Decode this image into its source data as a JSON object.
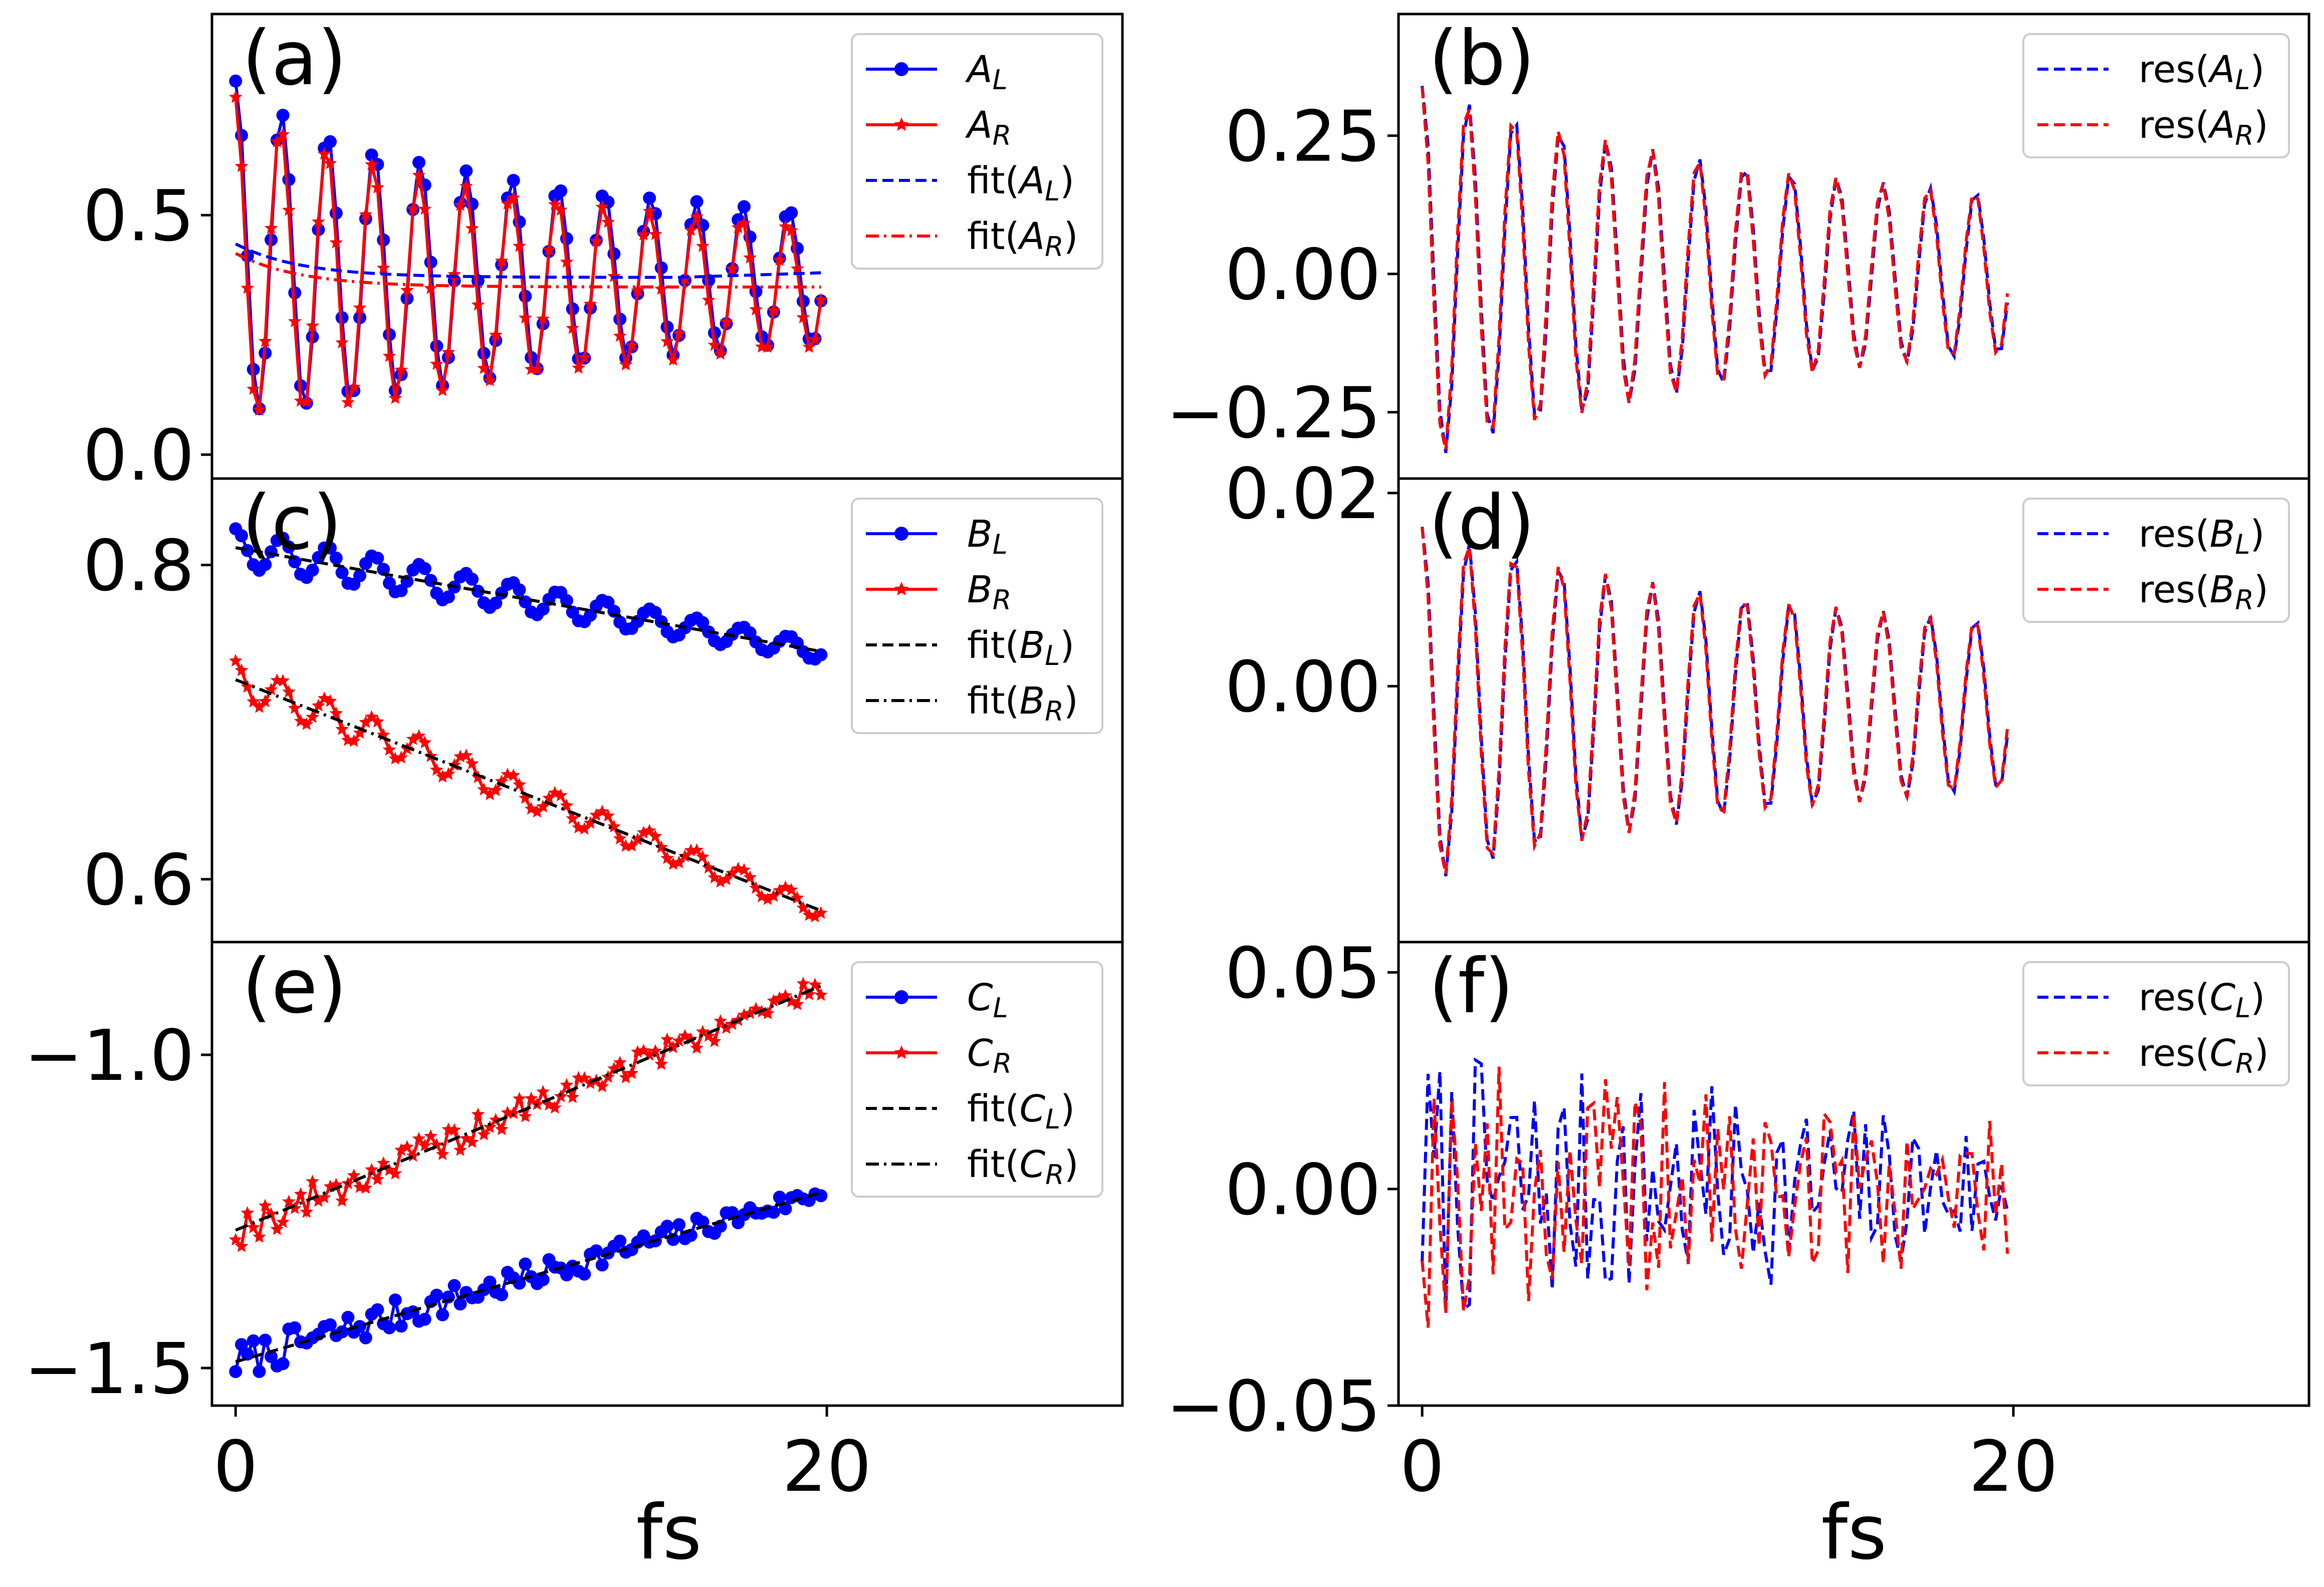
{
  "chart_data": {
    "type": "line",
    "xlabel": "fs",
    "x_ticks": [
      0,
      20
    ],
    "xlim": [
      -0.8,
      30
    ],
    "time_step": 0.2,
    "time_end": 19.8,
    "panels": [
      {
        "id": "a",
        "label": "(a)",
        "ylim": [
          -0.05,
          0.92
        ],
        "yticks": [
          {
            "v": 0.0,
            "t": "0.0"
          },
          {
            "v": 0.5,
            "t": "0.5"
          }
        ],
        "legend": [
          {
            "text": "A_L",
            "sub": "L",
            "base": "A",
            "italic": true,
            "color": "#0000ff",
            "style": "marker-circle"
          },
          {
            "text": "A_R",
            "sub": "R",
            "base": "A",
            "italic": true,
            "color": "#ff0000",
            "style": "marker-star"
          },
          {
            "text": "fit(A_L)",
            "sub": "L",
            "base": "A",
            "wrap": "fit",
            "color": "#0000ff",
            "style": "dashed"
          },
          {
            "text": "fit(A_R)",
            "sub": "R",
            "base": "A",
            "wrap": "fit",
            "color": "#ff0000",
            "style": "dashdot"
          }
        ],
        "series": [
          {
            "name": "A_L",
            "kind": "osc",
            "color": "#0000ff",
            "marker": "circle",
            "base_start": 0.44,
            "base_end": 0.37,
            "base_tau": 2.2,
            "amp0": 0.34,
            "amp1": 0.09,
            "amp_tau": 12,
            "period": 1.56,
            "phase": 0.0
          },
          {
            "name": "A_R",
            "kind": "osc",
            "color": "#ff0000",
            "marker": "star",
            "base_start": 0.42,
            "base_end": 0.35,
            "base_tau": 2.2,
            "amp0": 0.33,
            "amp1": 0.08,
            "amp_tau": 12,
            "period": 1.56,
            "phase": 0.15
          },
          {
            "name": "fit(A_L)",
            "kind": "fit",
            "color": "#0000ff",
            "dash": "dashed",
            "base_start": 0.44,
            "base_end": 0.37,
            "base_tau": 2.2,
            "tail_rise": 0.01
          },
          {
            "name": "fit(A_R)",
            "kind": "fit",
            "color": "#ff0000",
            "dash": "dashdot",
            "base_start": 0.42,
            "base_end": 0.35,
            "base_tau": 2.2,
            "tail_rise": 0.0
          }
        ]
      },
      {
        "id": "b",
        "label": "(b)",
        "ylim": [
          -0.37,
          0.47
        ],
        "yticks": [
          {
            "v": -0.25,
            "t": "−0.25"
          },
          {
            "v": 0.0,
            "t": "0.00"
          },
          {
            "v": 0.25,
            "t": "0.25"
          }
        ],
        "legend": [
          {
            "text": "res(A_L)",
            "sub": "L",
            "base": "A",
            "wrap": "res",
            "color": "#0000ff",
            "style": "dashed"
          },
          {
            "text": "res(A_R)",
            "sub": "R",
            "base": "A",
            "wrap": "res",
            "color": "#ff0000",
            "style": "dashed"
          }
        ],
        "series": [
          {
            "name": "res(A_L)",
            "kind": "res",
            "color": "#0000ff",
            "dash": "dashed",
            "amp0": 0.34,
            "amp1": 0.1,
            "amp_tau": 12,
            "period": 1.56,
            "phase": 0.0
          },
          {
            "name": "res(A_R)",
            "kind": "res",
            "color": "#ff0000",
            "dash": "dashed",
            "amp0": 0.34,
            "amp1": 0.1,
            "amp_tau": 12,
            "period": 1.56,
            "phase": 0.12
          }
        ]
      },
      {
        "id": "c",
        "label": "(c)",
        "ylim": [
          0.56,
          0.855
        ],
        "yticks": [
          {
            "v": 0.6,
            "t": "0.6"
          },
          {
            "v": 0.8,
            "t": "0.8"
          }
        ],
        "legend": [
          {
            "text": "B_L",
            "sub": "L",
            "base": "B",
            "italic": true,
            "color": "#0000ff",
            "style": "marker-circle"
          },
          {
            "text": "B_R",
            "sub": "R",
            "base": "B",
            "italic": true,
            "color": "#ff0000",
            "style": "marker-star"
          },
          {
            "text": "fit(B_L)",
            "sub": "L",
            "base": "B",
            "wrap": "fit",
            "color": "#000000",
            "style": "dashed"
          },
          {
            "text": "fit(B_R)",
            "sub": "R",
            "base": "B",
            "wrap": "fit",
            "color": "#000000",
            "style": "dashdot"
          }
        ],
        "series": [
          {
            "name": "B_L",
            "kind": "linosc",
            "color": "#0000ff",
            "marker": "circle",
            "y0": 0.811,
            "y1": 0.745,
            "amp0": 0.012,
            "amp1": 0.006,
            "period": 1.56,
            "phase": 0.0
          },
          {
            "name": "B_R",
            "kind": "linosc",
            "color": "#ff0000",
            "marker": "star",
            "y0": 0.727,
            "y1": 0.58,
            "amp0": 0.012,
            "amp1": 0.006,
            "period": 1.56,
            "phase": 0.1
          },
          {
            "name": "fit(B_L)",
            "kind": "line",
            "color": "#000000",
            "dash": "dashed",
            "y0": 0.811,
            "y1": 0.745
          },
          {
            "name": "fit(B_R)",
            "kind": "line",
            "color": "#000000",
            "dash": "dashdot",
            "y0": 0.727,
            "y1": 0.58
          }
        ]
      },
      {
        "id": "d",
        "label": "(d)",
        "ylim": [
          -0.0265,
          0.0215
        ],
        "yticks": [
          {
            "v": 0.0,
            "t": "0.00"
          },
          {
            "v": 0.02,
            "t": "0.02"
          }
        ],
        "legend": [
          {
            "text": "res(B_L)",
            "sub": "L",
            "base": "B",
            "wrap": "res",
            "color": "#0000ff",
            "style": "dashed"
          },
          {
            "text": "res(B_R)",
            "sub": "R",
            "base": "B",
            "wrap": "res",
            "color": "#ff0000",
            "style": "dashed"
          }
        ],
        "series": [
          {
            "name": "res(B_L)",
            "kind": "res",
            "color": "#0000ff",
            "dash": "dashed",
            "amp0": 0.0185,
            "amp1": 0.0065,
            "amp_tau": 12,
            "period": 1.56,
            "phase": 0.0,
            "offset": -0.002
          },
          {
            "name": "res(B_R)",
            "kind": "res",
            "color": "#ff0000",
            "dash": "dashed",
            "amp0": 0.0185,
            "amp1": 0.0065,
            "amp_tau": 12,
            "period": 1.56,
            "phase": 0.1,
            "offset": -0.002
          }
        ]
      },
      {
        "id": "e",
        "label": "(e)",
        "ylim": [
          -1.56,
          -0.82
        ],
        "yticks": [
          {
            "v": -1.5,
            "t": "−1.5"
          },
          {
            "v": -1.0,
            "t": "−1.0"
          }
        ],
        "legend": [
          {
            "text": "C_L",
            "sub": "L",
            "base": "C",
            "italic": true,
            "color": "#0000ff",
            "style": "marker-circle"
          },
          {
            "text": "C_R",
            "sub": "R",
            "base": "C",
            "italic": true,
            "color": "#ff0000",
            "style": "marker-star"
          },
          {
            "text": "fit(C_L)",
            "sub": "L",
            "base": "C",
            "wrap": "fit",
            "color": "#000000",
            "style": "dashed"
          },
          {
            "text": "fit(C_R)",
            "sub": "R",
            "base": "C",
            "wrap": "fit",
            "color": "#000000",
            "style": "dashdot"
          }
        ],
        "series": [
          {
            "name": "C_L",
            "kind": "noisy",
            "color": "#0000ff",
            "marker": "circle",
            "y0": -1.49,
            "y1": -1.22,
            "noise": 0.03,
            "seed": 7
          },
          {
            "name": "C_R",
            "kind": "noisy",
            "color": "#ff0000",
            "marker": "star",
            "y0": -1.28,
            "y1": -0.89,
            "noise": 0.03,
            "seed": 19
          },
          {
            "name": "fit(C_L)",
            "kind": "line",
            "color": "#000000",
            "dash": "dashed",
            "y0": -1.49,
            "y1": -1.22
          },
          {
            "name": "fit(C_R)",
            "kind": "line",
            "color": "#000000",
            "dash": "dashdot",
            "y0": -1.28,
            "y1": -0.89
          }
        ]
      },
      {
        "id": "f",
        "label": "(f)",
        "ylim": [
          -0.05,
          0.057
        ],
        "yticks": [
          {
            "v": -0.05,
            "t": "−0.05"
          },
          {
            "v": 0.0,
            "t": "0.00"
          },
          {
            "v": 0.05,
            "t": "0.05"
          }
        ],
        "legend": [
          {
            "text": "res(C_L)",
            "sub": "L",
            "base": "C",
            "wrap": "res",
            "color": "#0000ff",
            "style": "dashed"
          },
          {
            "text": "res(C_R)",
            "sub": "R",
            "base": "C",
            "wrap": "res",
            "color": "#ff0000",
            "style": "dashed"
          }
        ],
        "series": [
          {
            "name": "res(C_L)",
            "kind": "noiseres",
            "color": "#0000ff",
            "dash": "dashed",
            "amp0": 0.038,
            "amp1": 0.018,
            "seed": 7
          },
          {
            "name": "res(C_R)",
            "kind": "noiseres",
            "color": "#ff0000",
            "dash": "dashed",
            "amp0": 0.038,
            "amp1": 0.018,
            "seed": 19
          }
        ]
      }
    ]
  }
}
